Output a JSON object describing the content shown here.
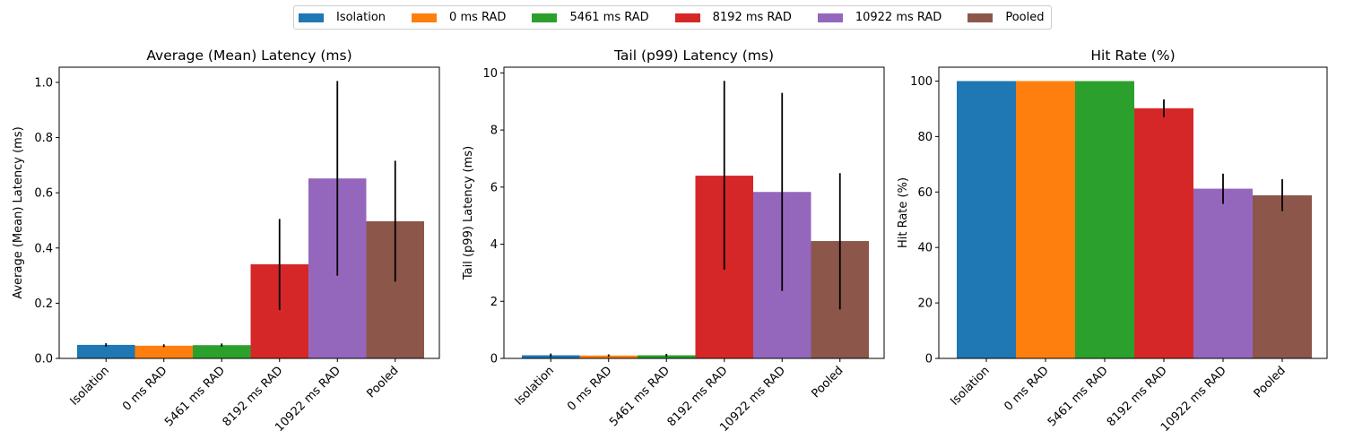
{
  "legend": [
    {
      "name": "Isolation",
      "color": "#1f77b4"
    },
    {
      "name": "0 ms RAD",
      "color": "#ff7f0e"
    },
    {
      "name": "5461 ms RAD",
      "color": "#2ca02c"
    },
    {
      "name": "8192 ms RAD",
      "color": "#d62728"
    },
    {
      "name": "10922 ms RAD",
      "color": "#9467bd"
    },
    {
      "name": "Pooled",
      "color": "#8c564b"
    }
  ],
  "chart_data": [
    {
      "type": "bar",
      "title": "Average (Mean) Latency (ms)",
      "ylabel": "Average (Mean) Latency (ms)",
      "categories": [
        "Isolation",
        "0 ms RAD",
        "5461 ms RAD",
        "8192 ms RAD",
        "10922 ms RAD",
        "Pooled"
      ],
      "values": [
        0.049,
        0.046,
        0.048,
        0.341,
        0.652,
        0.497
      ],
      "error_low": [
        0.043,
        0.041,
        0.043,
        0.175,
        0.3,
        0.278
      ],
      "error_high": [
        0.055,
        0.051,
        0.054,
        0.505,
        1.005,
        0.716
      ],
      "ylim": [
        0,
        1.055
      ],
      "yticks": [
        0.0,
        0.2,
        0.4,
        0.6,
        0.8,
        1.0
      ],
      "ytick_labels": [
        "0.0",
        "0.2",
        "0.4",
        "0.6",
        "0.8",
        "1.0"
      ]
    },
    {
      "type": "bar",
      "title": "Tail (p99) Latency (ms)",
      "ylabel": "Tail (p99) Latency (ms)",
      "categories": [
        "Isolation",
        "0 ms RAD",
        "5461 ms RAD",
        "8192 ms RAD",
        "10922 ms RAD",
        "Pooled"
      ],
      "values": [
        0.11,
        0.1,
        0.11,
        6.4,
        5.83,
        4.11
      ],
      "error_low": [
        0.05,
        0.06,
        0.06,
        3.11,
        2.36,
        1.71
      ],
      "error_high": [
        0.17,
        0.14,
        0.16,
        9.72,
        9.3,
        6.49
      ],
      "ylim": [
        0,
        10.2
      ],
      "yticks": [
        0,
        2,
        4,
        6,
        8,
        10
      ],
      "ytick_labels": [
        "0",
        "2",
        "4",
        "6",
        "8",
        "10"
      ]
    },
    {
      "type": "bar",
      "title": "Hit Rate (%)",
      "ylabel": "Hit Rate (%)",
      "categories": [
        "Isolation",
        "0 ms RAD",
        "5461 ms RAD",
        "8192 ms RAD",
        "10922 ms RAD",
        "Pooled"
      ],
      "values": [
        100,
        100,
        100,
        90.2,
        61.2,
        58.8
      ],
      "error_low": [
        100,
        100,
        100,
        87.0,
        55.7,
        53.1
      ],
      "error_high": [
        100,
        100,
        100,
        93.4,
        66.6,
        64.6
      ],
      "ylim": [
        0,
        105
      ],
      "yticks": [
        0,
        20,
        40,
        60,
        80,
        100
      ],
      "ytick_labels": [
        "0",
        "20",
        "40",
        "60",
        "80",
        "100"
      ]
    }
  ]
}
